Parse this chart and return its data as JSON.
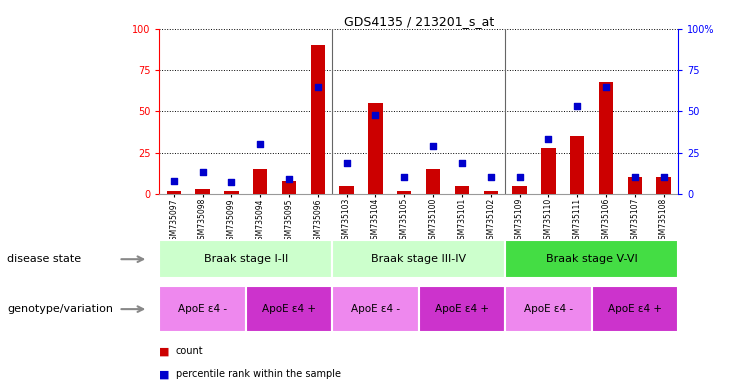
{
  "title": "GDS4135 / 213201_s_at",
  "samples": [
    "GSM735097",
    "GSM735098",
    "GSM735099",
    "GSM735094",
    "GSM735095",
    "GSM735096",
    "GSM735103",
    "GSM735104",
    "GSM735105",
    "GSM735100",
    "GSM735101",
    "GSM735102",
    "GSM735109",
    "GSM735110",
    "GSM735111",
    "GSM735106",
    "GSM735107",
    "GSM735108"
  ],
  "counts": [
    2,
    3,
    2,
    15,
    8,
    90,
    5,
    55,
    2,
    15,
    5,
    2,
    5,
    28,
    35,
    68,
    10,
    10
  ],
  "percentiles": [
    8,
    13,
    7,
    30,
    9,
    65,
    19,
    48,
    10,
    29,
    19,
    10,
    10,
    33,
    53,
    65,
    10,
    10
  ],
  "bar_color": "#cc0000",
  "square_color": "#0000cc",
  "ylim": [
    0,
    100
  ],
  "yticks": [
    0,
    25,
    50,
    75,
    100
  ],
  "right_ytick_labels": [
    "0",
    "25",
    "50",
    "75",
    "100%"
  ],
  "disease_groups": [
    {
      "label": "Braak stage I-II",
      "start": 0,
      "end": 6,
      "color": "#ccffcc"
    },
    {
      "label": "Braak stage III-IV",
      "start": 6,
      "end": 12,
      "color": "#ccffcc"
    },
    {
      "label": "Braak stage V-VI",
      "start": 12,
      "end": 18,
      "color": "#44dd44"
    }
  ],
  "genotype_groups": [
    {
      "label": "ApoE ε4 -",
      "start": 0,
      "end": 3,
      "color": "#ee88ee"
    },
    {
      "label": "ApoE ε4 +",
      "start": 3,
      "end": 6,
      "color": "#cc33cc"
    },
    {
      "label": "ApoE ε4 -",
      "start": 6,
      "end": 9,
      "color": "#ee88ee"
    },
    {
      "label": "ApoE ε4 +",
      "start": 9,
      "end": 12,
      "color": "#cc33cc"
    },
    {
      "label": "ApoE ε4 -",
      "start": 12,
      "end": 15,
      "color": "#ee88ee"
    },
    {
      "label": "ApoE ε4 +",
      "start": 15,
      "end": 18,
      "color": "#cc33cc"
    }
  ],
  "legend_count_label": "count",
  "legend_pct_label": "percentile rank within the sample",
  "disease_state_label": "disease state",
  "genotype_label": "genotype/variation",
  "n_samples": 18,
  "bar_width": 0.5,
  "square_size": 18
}
